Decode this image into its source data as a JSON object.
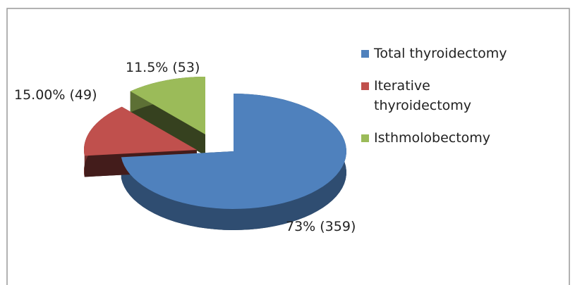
{
  "chart_data": {
    "type": "pie",
    "categories": [
      "Total thyroidectomy",
      "Iterative thyroidectomy",
      "Isthmolobectomy"
    ],
    "values": [
      73,
      15,
      11.5
    ],
    "value_labels": [
      "73% (359)",
      "15.00% (49)",
      "11.5% (53)"
    ],
    "colors": [
      "#4f81bd",
      "#c0504d",
      "#9bbb59"
    ],
    "legend": "right"
  }
}
